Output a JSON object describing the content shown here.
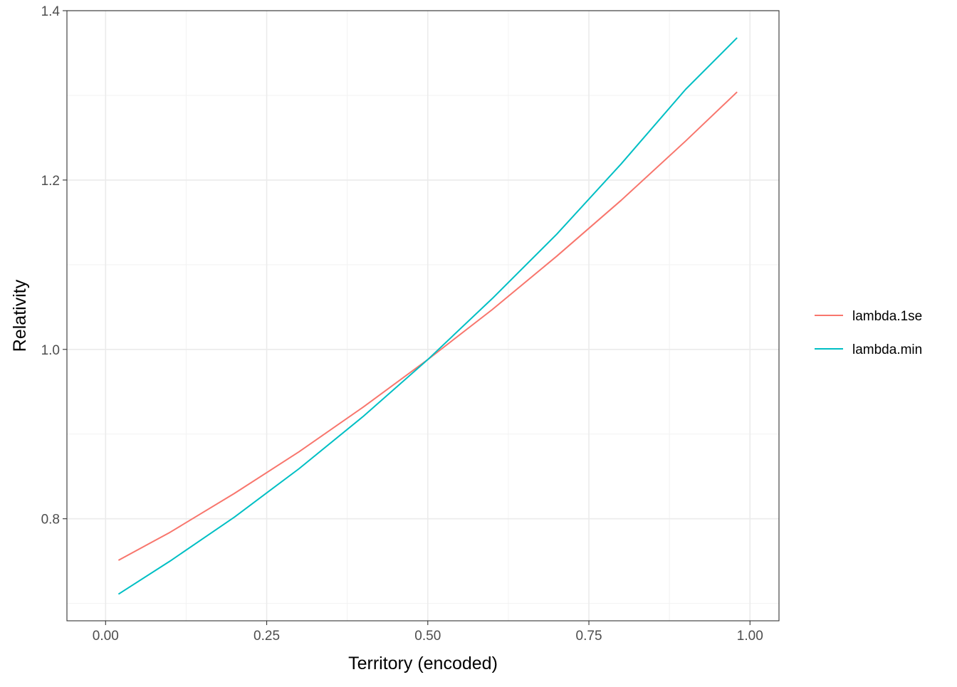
{
  "chart_data": {
    "type": "line",
    "title": "",
    "xlabel": "Territory (encoded)",
    "ylabel": "Relativity",
    "xlim": [
      -0.06,
      1.045
    ],
    "ylim": [
      0.6795,
      1.4
    ],
    "x_ticks": [
      0.0,
      0.25,
      0.5,
      0.75,
      1.0
    ],
    "x_tick_labels": [
      "0.00",
      "0.25",
      "0.50",
      "0.75",
      "1.00"
    ],
    "y_ticks": [
      0.8,
      1.0,
      1.2,
      1.4
    ],
    "y_tick_labels": [
      "0.8",
      "1.0",
      "1.2",
      "1.4"
    ],
    "x_minor_ticks": [
      0.125,
      0.375,
      0.625,
      0.875
    ],
    "y_minor_ticks": [
      0.7,
      0.9,
      1.1,
      1.3
    ],
    "grid": true,
    "legend_position": "right",
    "series": [
      {
        "name": "lambda.1se",
        "color": "#F8766D",
        "x": [
          0.02,
          0.1,
          0.2,
          0.3,
          0.4,
          0.5,
          0.6,
          0.7,
          0.8,
          0.9,
          0.98
        ],
        "values": [
          0.751,
          0.784,
          0.83,
          0.879,
          0.932,
          0.988,
          1.047,
          1.11,
          1.176,
          1.246,
          1.304
        ]
      },
      {
        "name": "lambda.min",
        "color": "#00BFC4",
        "x": [
          0.02,
          0.1,
          0.2,
          0.3,
          0.4,
          0.5,
          0.6,
          0.7,
          0.8,
          0.9,
          0.98
        ],
        "values": [
          0.711,
          0.75,
          0.802,
          0.859,
          0.921,
          0.988,
          1.06,
          1.136,
          1.219,
          1.307,
          1.368
        ]
      }
    ]
  }
}
